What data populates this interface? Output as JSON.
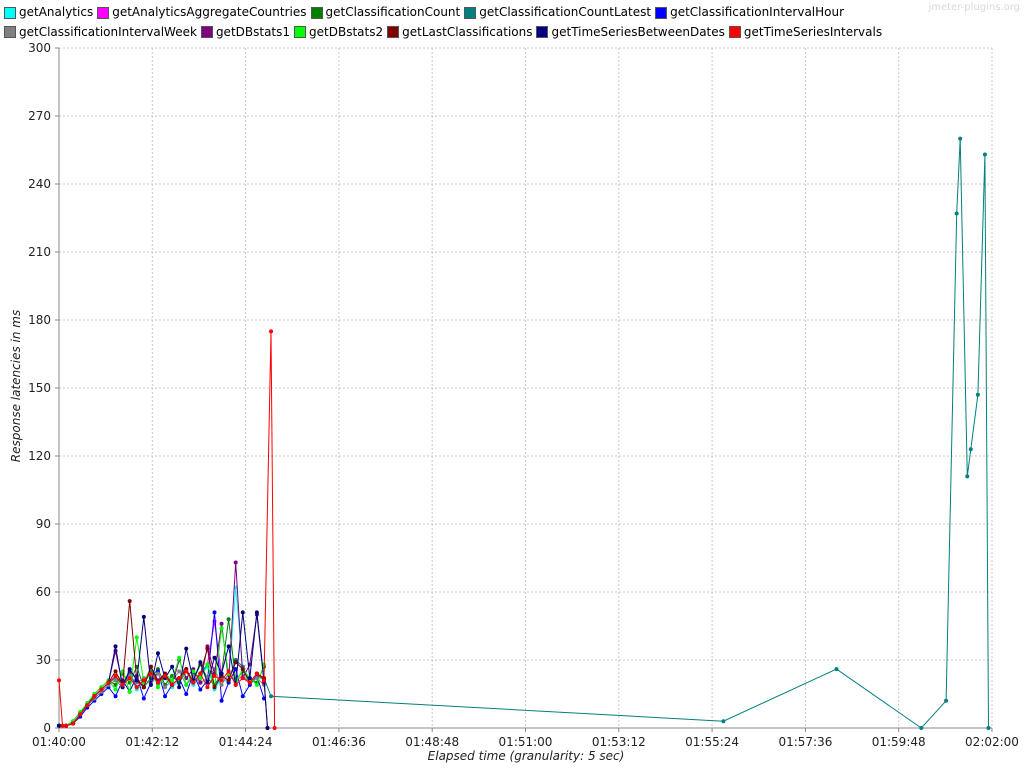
{
  "watermark": "jmeter-plugins.org",
  "chart_data": {
    "type": "line",
    "xlabel": "Elapsed time (granularity: 5 sec)",
    "ylabel": "Response latencies in ms",
    "xlim": [
      "01:40:00",
      "02:02:00"
    ],
    "ylim": [
      0,
      300
    ],
    "x_ticks": [
      "01:40:00",
      "01:42:12",
      "01:44:24",
      "01:46:36",
      "01:48:48",
      "01:51:00",
      "01:53:12",
      "01:55:24",
      "01:57:36",
      "01:59:48",
      "02:02:00"
    ],
    "y_ticks": [
      0,
      30,
      60,
      90,
      120,
      150,
      180,
      210,
      240,
      270,
      300
    ],
    "grid": true,
    "legend_position": "top",
    "series": [
      {
        "name": "getAnalytics",
        "color": "#00ffff",
        "x": [
          "01:40:00",
          "01:40:10",
          "01:40:20",
          "01:40:30",
          "01:40:40",
          "01:40:50",
          "01:41:00",
          "01:41:10",
          "01:41:20",
          "01:41:30",
          "01:41:40",
          "01:41:50",
          "01:42:00",
          "01:42:10",
          "01:42:20",
          "01:42:30",
          "01:42:40",
          "01:42:50",
          "01:43:00",
          "01:43:10",
          "01:43:20",
          "01:43:30",
          "01:43:40",
          "01:43:50",
          "01:44:00",
          "01:44:10",
          "01:44:20",
          "01:44:30",
          "01:44:40",
          "01:44:50"
        ],
        "values": [
          1,
          1,
          2,
          6,
          10,
          13,
          16,
          19,
          21,
          18,
          23,
          17,
          20,
          24,
          19,
          22,
          18,
          21,
          25,
          19,
          23,
          27,
          17,
          22,
          20,
          62,
          26,
          19,
          23,
          21
        ]
      },
      {
        "name": "getAnalyticsAggregateCountries",
        "color": "#ff00ff",
        "x": [
          "01:40:00",
          "01:40:10",
          "01:40:20",
          "01:40:30",
          "01:40:40",
          "01:40:50",
          "01:41:00",
          "01:41:10",
          "01:41:20",
          "01:41:30",
          "01:41:40",
          "01:41:50",
          "01:42:00",
          "01:42:10",
          "01:42:20",
          "01:42:30",
          "01:42:40",
          "01:42:50",
          "01:43:00",
          "01:43:10",
          "01:43:20",
          "01:43:30",
          "01:43:40",
          "01:43:50",
          "01:44:00",
          "01:44:10",
          "01:44:20",
          "01:44:30",
          "01:44:40",
          "01:44:50"
        ],
        "values": [
          1,
          1,
          2,
          6,
          11,
          14,
          17,
          20,
          22,
          19,
          24,
          18,
          21,
          25,
          20,
          23,
          19,
          22,
          26,
          20,
          24,
          28,
          47,
          23,
          21,
          30,
          27,
          20,
          24,
          22
        ]
      },
      {
        "name": "getClassificationCount",
        "color": "#008000",
        "x": [
          "01:40:00",
          "01:40:10",
          "01:40:20",
          "01:40:30",
          "01:40:40",
          "01:40:50",
          "01:41:00",
          "01:41:10",
          "01:41:20",
          "01:41:30",
          "01:41:40",
          "01:41:50",
          "01:42:00",
          "01:42:10",
          "01:42:20",
          "01:42:30",
          "01:42:40",
          "01:42:50",
          "01:43:00",
          "01:43:10",
          "01:43:20",
          "01:43:30",
          "01:43:40",
          "01:43:50",
          "01:44:00",
          "01:44:10",
          "01:44:20",
          "01:44:30",
          "01:44:40",
          "01:44:50"
        ],
        "values": [
          1,
          1,
          3,
          7,
          10,
          15,
          18,
          21,
          19,
          24,
          20,
          27,
          18,
          22,
          26,
          19,
          23,
          20,
          25,
          21,
          28,
          22,
          19,
          24,
          48,
          21,
          25,
          22,
          20,
          27
        ]
      },
      {
        "name": "getClassificationCountLatest",
        "color": "#008080",
        "x": [
          "01:40:00",
          "01:40:10",
          "01:40:20",
          "01:40:30",
          "01:40:40",
          "01:40:50",
          "01:41:00",
          "01:41:10",
          "01:41:20",
          "01:41:30",
          "01:41:40",
          "01:41:50",
          "01:42:00",
          "01:42:10",
          "01:42:20",
          "01:42:30",
          "01:42:40",
          "01:42:50",
          "01:43:00",
          "01:43:10",
          "01:43:20",
          "01:43:30",
          "01:43:40",
          "01:43:50",
          "01:44:00",
          "01:44:10",
          "01:44:20",
          "01:44:30",
          "01:44:40",
          "01:44:50",
          "01:45:00",
          "01:55:40",
          "01:58:20",
          "02:00:20",
          "02:00:55",
          "02:01:10",
          "02:01:15",
          "02:01:25",
          "02:01:30",
          "02:01:40",
          "02:01:50",
          "02:01:55"
        ],
        "values": [
          1,
          1,
          2,
          6,
          10,
          14,
          17,
          20,
          22,
          19,
          24,
          18,
          21,
          25,
          20,
          23,
          19,
          22,
          26,
          20,
          24,
          28,
          18,
          23,
          21,
          30,
          27,
          20,
          24,
          22,
          14,
          3,
          26,
          0,
          12,
          227,
          260,
          111,
          123,
          147,
          253,
          0
        ]
      },
      {
        "name": "getClassificationIntervalHour",
        "color": "#0000ff",
        "x": [
          "01:40:00",
          "01:40:10",
          "01:40:20",
          "01:40:30",
          "01:40:40",
          "01:40:50",
          "01:41:00",
          "01:41:10",
          "01:41:20",
          "01:41:30",
          "01:41:40",
          "01:41:50",
          "01:42:00",
          "01:42:10",
          "01:42:20",
          "01:42:30",
          "01:42:40",
          "01:42:50",
          "01:43:00",
          "01:43:10",
          "01:43:20",
          "01:43:30",
          "01:43:40",
          "01:43:50",
          "01:44:00",
          "01:44:10",
          "01:44:20",
          "01:44:30",
          "01:44:40",
          "01:44:50"
        ],
        "values": [
          1,
          1,
          2,
          5,
          9,
          12,
          15,
          18,
          14,
          21,
          16,
          23,
          13,
          20,
          25,
          14,
          19,
          22,
          15,
          24,
          17,
          21,
          51,
          12,
          20,
          26,
          14,
          19,
          23,
          13
        ]
      },
      {
        "name": "getClassificationIntervalWeek",
        "color": "#808080",
        "x": [
          "01:40:00",
          "01:40:10",
          "01:40:20",
          "01:40:30",
          "01:40:40",
          "01:40:50",
          "01:41:00",
          "01:41:10",
          "01:41:20",
          "01:41:30",
          "01:41:40",
          "01:41:50",
          "01:42:00",
          "01:42:10",
          "01:42:20",
          "01:42:30",
          "01:42:40",
          "01:42:50",
          "01:43:00",
          "01:43:10",
          "01:43:20",
          "01:43:30",
          "01:43:40",
          "01:43:50",
          "01:44:00",
          "01:44:10",
          "01:44:20",
          "01:44:30",
          "01:44:40",
          "01:44:50"
        ],
        "values": [
          1,
          1,
          2,
          6,
          10,
          13,
          16,
          19,
          21,
          18,
          23,
          20,
          22,
          19,
          24,
          18,
          21,
          25,
          19,
          23,
          20,
          22,
          26,
          19,
          24,
          21,
          23,
          20,
          22,
          19
        ]
      },
      {
        "name": "getDBstats1",
        "color": "#800080",
        "x": [
          "01:40:00",
          "01:40:10",
          "01:40:20",
          "01:40:30",
          "01:40:40",
          "01:40:50",
          "01:41:00",
          "01:41:10",
          "01:41:20",
          "01:41:30",
          "01:41:40",
          "01:41:50",
          "01:42:00",
          "01:42:10",
          "01:42:20",
          "01:42:30",
          "01:42:40",
          "01:42:50",
          "01:43:00",
          "01:43:10",
          "01:43:20",
          "01:43:30",
          "01:43:40",
          "01:43:50",
          "01:44:00",
          "01:44:10",
          "01:44:20",
          "01:44:30",
          "01:44:40",
          "01:44:50"
        ],
        "values": [
          1,
          1,
          2,
          6,
          10,
          14,
          17,
          20,
          34,
          19,
          25,
          22,
          18,
          27,
          21,
          24,
          19,
          30,
          22,
          26,
          20,
          36,
          24,
          46,
          21,
          73,
          22,
          28,
          50,
          20
        ]
      },
      {
        "name": "getDBstats2",
        "color": "#00ff00",
        "x": [
          "01:40:00",
          "01:40:10",
          "01:40:20",
          "01:40:30",
          "01:40:40",
          "01:40:50",
          "01:41:00",
          "01:41:10",
          "01:41:20",
          "01:41:30",
          "01:41:40",
          "01:41:50",
          "01:42:00",
          "01:42:10",
          "01:42:20",
          "01:42:30",
          "01:42:40",
          "01:42:50",
          "01:43:00",
          "01:43:10",
          "01:43:20",
          "01:43:30",
          "01:43:40",
          "01:43:50",
          "01:44:00",
          "01:44:10",
          "01:44:20",
          "01:44:30",
          "01:44:40",
          "01:44:50"
        ],
        "values": [
          1,
          1,
          3,
          7,
          11,
          15,
          18,
          21,
          17,
          25,
          16,
          40,
          20,
          27,
          18,
          24,
          21,
          31,
          19,
          25,
          22,
          28,
          18,
          44,
          24,
          20,
          26,
          22,
          19,
          28
        ]
      },
      {
        "name": "getLastClassifications",
        "color": "#800000",
        "x": [
          "01:40:00",
          "01:40:10",
          "01:40:20",
          "01:40:30",
          "01:40:40",
          "01:40:50",
          "01:41:00",
          "01:41:10",
          "01:41:20",
          "01:41:30",
          "01:41:40",
          "01:41:50",
          "01:42:00",
          "01:42:10",
          "01:42:20",
          "01:42:30",
          "01:42:40",
          "01:42:50",
          "01:43:00",
          "01:43:10",
          "01:43:20",
          "01:43:30",
          "01:43:40",
          "01:43:50",
          "01:44:00",
          "01:44:10",
          "01:44:20",
          "01:44:30",
          "01:44:40",
          "01:44:50",
          "01:44:55"
        ],
        "values": [
          1,
          1,
          2,
          6,
          10,
          14,
          17,
          20,
          25,
          19,
          56,
          21,
          18,
          27,
          20,
          24,
          19,
          22,
          26,
          20,
          24,
          35,
          18,
          23,
          21,
          29,
          26,
          20,
          24,
          22,
          0
        ]
      },
      {
        "name": "getTimeSeriesBetweenDates",
        "color": "#000080",
        "x": [
          "01:40:00",
          "01:40:10",
          "01:40:20",
          "01:40:30",
          "01:40:40",
          "01:40:50",
          "01:41:00",
          "01:41:10",
          "01:41:20",
          "01:41:30",
          "01:41:40",
          "01:41:50",
          "01:42:00",
          "01:42:10",
          "01:42:20",
          "01:42:30",
          "01:42:40",
          "01:42:50",
          "01:43:00",
          "01:43:10",
          "01:43:20",
          "01:43:30",
          "01:43:40",
          "01:43:50",
          "01:44:00",
          "01:44:10",
          "01:44:20",
          "01:44:30",
          "01:44:40",
          "01:44:50",
          "01:44:55"
        ],
        "values": [
          1,
          1,
          2,
          6,
          10,
          14,
          17,
          20,
          36,
          18,
          26,
          21,
          49,
          19,
          33,
          22,
          27,
          18,
          35,
          21,
          29,
          20,
          31,
          24,
          36,
          19,
          51,
          22,
          51,
          21,
          0
        ]
      },
      {
        "name": "getTimeSeriesIntervals",
        "color": "#ff0000",
        "x": [
          "01:40:00",
          "01:40:05",
          "01:40:10",
          "01:40:20",
          "01:40:30",
          "01:40:40",
          "01:40:50",
          "01:41:00",
          "01:41:10",
          "01:41:20",
          "01:41:30",
          "01:41:40",
          "01:41:50",
          "01:42:00",
          "01:42:10",
          "01:42:20",
          "01:42:30",
          "01:42:40",
          "01:42:50",
          "01:43:00",
          "01:43:10",
          "01:43:20",
          "01:43:30",
          "01:43:40",
          "01:43:50",
          "01:44:00",
          "01:44:10",
          "01:44:20",
          "01:44:30",
          "01:44:40",
          "01:44:50",
          "01:45:00",
          "01:45:05"
        ],
        "values": [
          21,
          1,
          1,
          2,
          6,
          10,
          14,
          17,
          20,
          23,
          19,
          22,
          18,
          21,
          24,
          20,
          23,
          19,
          22,
          25,
          20,
          24,
          18,
          23,
          21,
          25,
          19,
          22,
          20,
          24,
          21,
          175,
          0
        ]
      }
    ]
  }
}
